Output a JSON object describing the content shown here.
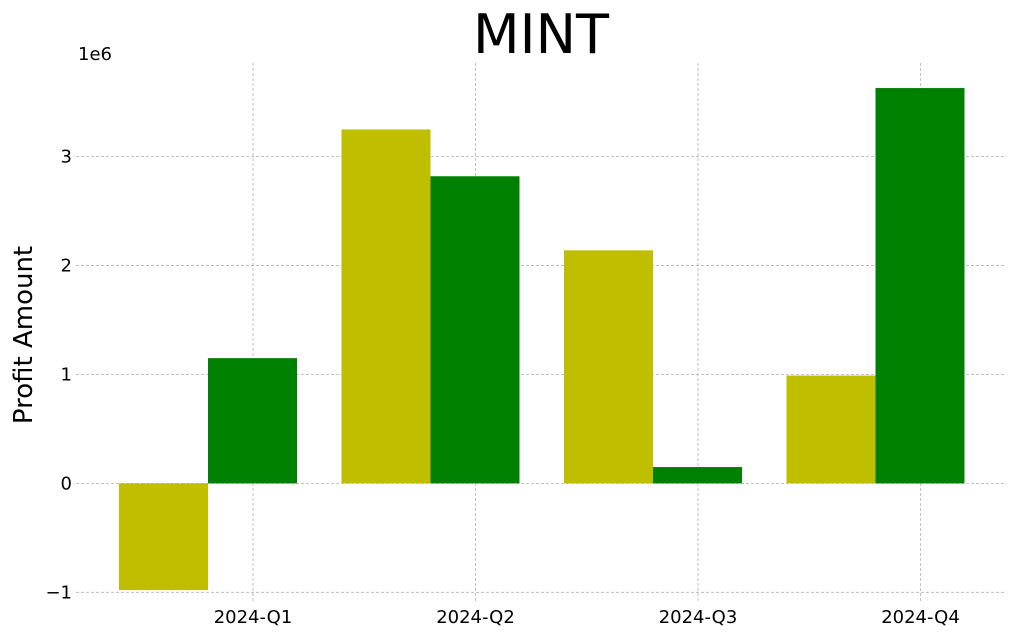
{
  "chart_data": {
    "type": "bar",
    "title": "MINT",
    "xlabel": "",
    "ylabel": "Profit Amount",
    "y_offset_label": "1e6",
    "categories": [
      "2024-Q1",
      "2024-Q2",
      "2024-Q3",
      "2024-Q4"
    ],
    "series": [
      {
        "values": [
          -980000,
          3250000,
          2140000,
          990000
        ],
        "color": "#bfbf00"
      },
      {
        "values": [
          1150000,
          2820000,
          150000,
          3630000
        ],
        "color": "#008000"
      }
    ],
    "y_ticks": [
      -1000000,
      0,
      1000000,
      2000000,
      3000000
    ],
    "y_tick_labels": [
      "−1",
      "0",
      "1",
      "2",
      "3"
    ],
    "ylim": [
      -1080000,
      3860000
    ],
    "grid": true,
    "legend": "none"
  }
}
